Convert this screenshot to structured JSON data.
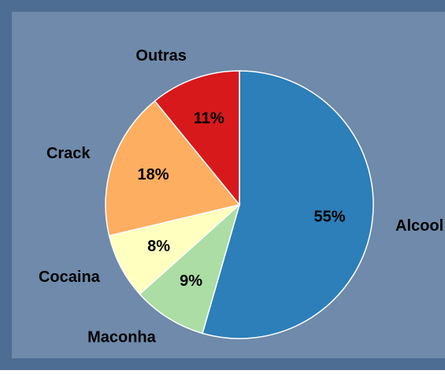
{
  "chart_data": {
    "type": "pie",
    "categories": [
      "Alcool",
      "Maconha",
      "Cocaina",
      "Crack",
      "Outras"
    ],
    "values": [
      55,
      9,
      8,
      18,
      11
    ],
    "value_labels": [
      "55%",
      "9%",
      "8%",
      "18%",
      "11%"
    ],
    "colors": [
      "#2c7fb8",
      "#abdda4",
      "#ffffbf",
      "#fdae61",
      "#d7191c"
    ]
  }
}
